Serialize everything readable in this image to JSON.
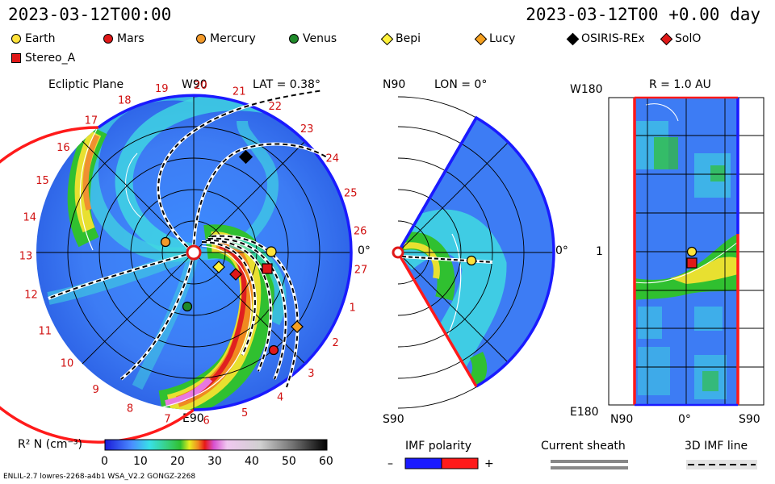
{
  "header": {
    "left_time": "2023-03-12T00:00",
    "right_time": "2023-03-12T00 +0.00 day"
  },
  "legend": [
    {
      "label": "Earth",
      "color": "#ffe23a",
      "shape": "circle"
    },
    {
      "label": "Mars",
      "color": "#e01818",
      "shape": "circle"
    },
    {
      "label": "Mercury",
      "color": "#f39a2a",
      "shape": "circle"
    },
    {
      "label": "Venus",
      "color": "#1f8a2a",
      "shape": "circle"
    },
    {
      "label": "Bepi",
      "color": "#fff23a",
      "shape": "diamond"
    },
    {
      "label": "Lucy",
      "color": "#f5a020",
      "shape": "diamond"
    },
    {
      "label": "OSIRIS-REx",
      "color": "#000000",
      "shape": "diamond"
    },
    {
      "label": "SolO",
      "color": "#e01818",
      "shape": "diamond"
    },
    {
      "label": "Stereo_A",
      "color": "#e01818",
      "shape": "square"
    }
  ],
  "panels": {
    "ecliptic": {
      "title": "Ecliptic Plane",
      "lat": "LAT = 0.38°",
      "top_label": "W90",
      "bottom_label": "E90",
      "right_label": "0°",
      "carrington": [
        "19",
        "20",
        "21",
        "22",
        "23",
        "24",
        "25",
        "26",
        "27",
        "1",
        "2",
        "3",
        "4",
        "5",
        "6",
        "7",
        "8",
        "9",
        "10",
        "11",
        "12",
        "13",
        "14",
        "15",
        "16",
        "17",
        "18"
      ]
    },
    "meridional": {
      "title": "LON = 0°",
      "top_label": "N90",
      "bottom_label": "S90",
      "right_label": "0°"
    },
    "radial": {
      "title": "R = 1.0 AU",
      "top_left": "W180",
      "bottom_left": "E180",
      "left_mid": "1",
      "x_labels": [
        "N90",
        "0°",
        "S90"
      ]
    }
  },
  "colorbar": {
    "label": "R² N (cm⁻³)",
    "ticks": [
      "0",
      "10",
      "20",
      "30",
      "40",
      "50",
      "60"
    ]
  },
  "imf": {
    "title": "IMF polarity",
    "minus": "–",
    "plus": "+",
    "neg_color": "#1a1aff",
    "pos_color": "#ff1a1a"
  },
  "current_sheath": {
    "title": "Current sheath"
  },
  "imf_line": {
    "title": "3D IMF line"
  },
  "footer": "ENLIL-2.7 lowres-2268-a4b1 WSA_V2.2 GONGZ-2268"
}
